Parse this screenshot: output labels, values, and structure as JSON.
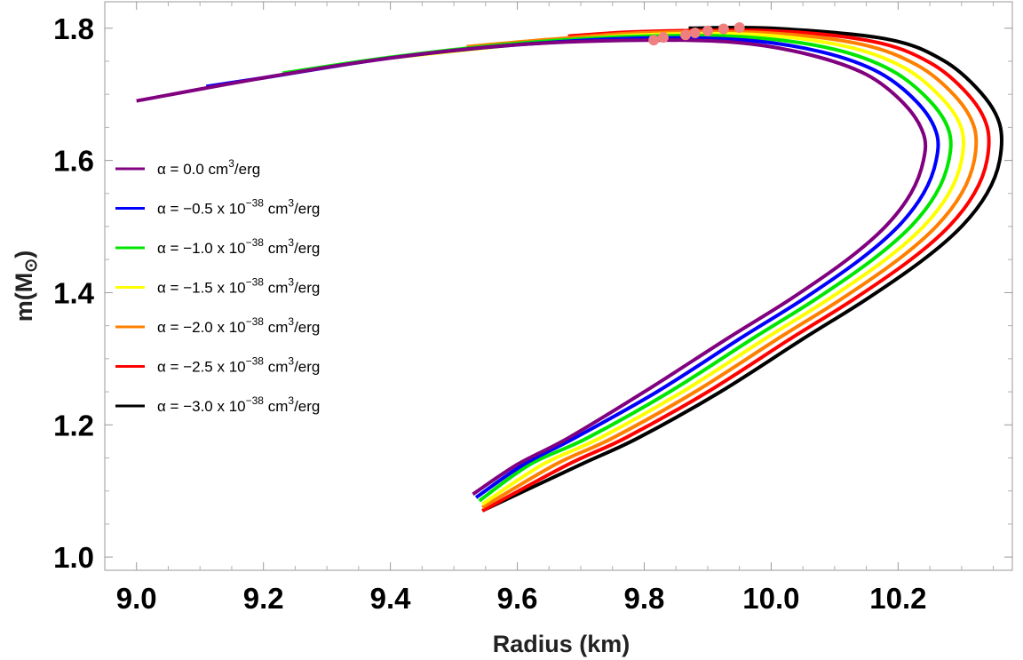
{
  "chart_data": {
    "type": "line",
    "title": "",
    "xlabel": "Radius (km)",
    "ylabel_main": "m(M",
    "ylabel_sub": "⊙",
    "ylabel_end": ")",
    "xlim": [
      8.95,
      10.38
    ],
    "ylim": [
      0.98,
      1.84
    ],
    "xticks": [
      {
        "value": 9.0,
        "label": "9.0"
      },
      {
        "value": 9.2,
        "label": "9.2"
      },
      {
        "value": 9.4,
        "label": "9.4"
      },
      {
        "value": 9.6,
        "label": "9.6"
      },
      {
        "value": 9.8,
        "label": "9.8"
      },
      {
        "value": 10.0,
        "label": "10.0"
      },
      {
        "value": 10.2,
        "label": "10.2"
      }
    ],
    "yticks": [
      {
        "value": 1.0,
        "label": "1.0"
      },
      {
        "value": 1.2,
        "label": "1.2"
      },
      {
        "value": 1.4,
        "label": "1.4"
      },
      {
        "value": 1.6,
        "label": "1.6"
      },
      {
        "value": 1.8,
        "label": "1.8"
      }
    ],
    "legend_position": "center-left",
    "series": [
      {
        "name": "α = 0.0 cm³/erg",
        "color": "#800080",
        "label_prefix": "α = 0.0 cm",
        "label_sup": "3",
        "label_suffix": "/erg",
        "has_exp": false,
        "x": [
          9.0,
          9.2,
          9.4,
          9.6,
          9.8,
          9.95,
          10.06,
          10.15,
          10.21,
          10.24,
          10.24,
          10.22,
          10.18,
          10.12,
          10.03,
          9.93,
          9.8,
          9.68,
          9.6,
          9.53
        ],
        "y": [
          1.69,
          1.725,
          1.755,
          1.775,
          1.782,
          1.778,
          1.76,
          1.73,
          1.685,
          1.64,
          1.6,
          1.55,
          1.5,
          1.45,
          1.39,
          1.33,
          1.25,
          1.18,
          1.14,
          1.095
        ],
        "max_point": {
          "x": 9.815,
          "y": 1.782
        }
      },
      {
        "name": "α = −0.5 x 10⁻³⁸ cm³/erg",
        "color": "#0000ff",
        "label_prefix": "α = −0.5 x 10",
        "label_exp": "−38",
        "label_mid": " cm",
        "label_sup": "3",
        "label_suffix": "/erg",
        "has_exp": true,
        "x": [
          9.11,
          9.2,
          9.4,
          9.6,
          9.8,
          9.96,
          10.08,
          10.17,
          10.23,
          10.26,
          10.26,
          10.24,
          10.2,
          10.14,
          10.05,
          9.95,
          9.82,
          9.69,
          9.61,
          9.535
        ],
        "y": [
          1.712,
          1.725,
          1.755,
          1.775,
          1.785,
          1.782,
          1.764,
          1.733,
          1.688,
          1.643,
          1.6,
          1.55,
          1.5,
          1.45,
          1.39,
          1.33,
          1.25,
          1.18,
          1.14,
          1.09
        ],
        "max_point": {
          "x": 9.83,
          "y": 1.786
        }
      },
      {
        "name": "α = −1.0 x 10⁻³⁸ cm³/erg",
        "color": "#00e600",
        "label_prefix": "α = −1.0 x 10",
        "label_exp": "−38",
        "label_mid": " cm",
        "label_sup": "3",
        "label_suffix": "/erg",
        "has_exp": true,
        "x": [
          9.23,
          9.4,
          9.6,
          9.8,
          9.97,
          10.1,
          10.19,
          10.25,
          10.28,
          10.28,
          10.26,
          10.22,
          10.16,
          10.07,
          9.97,
          9.84,
          9.71,
          9.62,
          9.54
        ],
        "y": [
          1.732,
          1.756,
          1.777,
          1.788,
          1.786,
          1.768,
          1.736,
          1.69,
          1.645,
          1.6,
          1.55,
          1.5,
          1.45,
          1.39,
          1.33,
          1.25,
          1.18,
          1.14,
          1.085
        ],
        "max_point": {
          "x": 9.865,
          "y": 1.79
        }
      },
      {
        "name": "α = −1.5 x 10⁻³⁸ cm³/erg",
        "color": "#ffff00",
        "label_prefix": "α = −1.5 x 10",
        "label_exp": "−38",
        "label_mid": " cm",
        "label_sup": "3",
        "label_suffix": "/erg",
        "has_exp": true,
        "x": [
          9.37,
          9.5,
          9.65,
          9.8,
          9.98,
          10.12,
          10.21,
          10.27,
          10.3,
          10.3,
          10.28,
          10.24,
          10.18,
          10.09,
          9.99,
          9.86,
          9.73,
          9.64,
          9.545
        ],
        "y": [
          1.752,
          1.765,
          1.78,
          1.79,
          1.79,
          1.772,
          1.74,
          1.693,
          1.648,
          1.6,
          1.55,
          1.5,
          1.45,
          1.39,
          1.33,
          1.25,
          1.18,
          1.14,
          1.08
        ],
        "max_point": {
          "x": 9.88,
          "y": 1.793
        }
      },
      {
        "name": "α = −2.0 x 10⁻³⁸ cm³/erg",
        "color": "#ff8000",
        "label_prefix": "α = −2.0 x 10",
        "label_exp": "−38",
        "label_mid": " cm",
        "label_sup": "3",
        "label_suffix": "/erg",
        "has_exp": true,
        "x": [
          9.52,
          9.65,
          9.8,
          9.99,
          10.14,
          10.23,
          10.29,
          10.32,
          10.32,
          10.3,
          10.26,
          10.2,
          10.11,
          10.01,
          9.88,
          9.75,
          9.66,
          9.545
        ],
        "y": [
          1.772,
          1.783,
          1.793,
          1.793,
          1.776,
          1.744,
          1.697,
          1.65,
          1.6,
          1.55,
          1.5,
          1.45,
          1.39,
          1.33,
          1.25,
          1.18,
          1.14,
          1.075
        ],
        "max_point": {
          "x": 9.9,
          "y": 1.796
        }
      },
      {
        "name": "α = −2.5 x 10⁻³⁸ cm³/erg",
        "color": "#ff0000",
        "label_prefix": "α = −2.5 x 10",
        "label_exp": "−38",
        "label_mid": " cm",
        "label_sup": "3",
        "label_suffix": "/erg",
        "has_exp": true,
        "x": [
          9.68,
          9.8,
          10.0,
          10.16,
          10.25,
          10.31,
          10.34,
          10.34,
          10.32,
          10.28,
          10.22,
          10.13,
          10.03,
          9.9,
          9.77,
          9.68,
          9.545
        ],
        "y": [
          1.788,
          1.795,
          1.796,
          1.78,
          1.748,
          1.7,
          1.652,
          1.6,
          1.55,
          1.5,
          1.45,
          1.39,
          1.33,
          1.25,
          1.18,
          1.14,
          1.07
        ],
        "max_point": {
          "x": 9.925,
          "y": 1.799
        }
      },
      {
        "name": "α = −3.0 x 10⁻³⁸ cm³/erg",
        "color": "#000000",
        "label_prefix": "α = −3.0 x 10",
        "label_exp": "−38",
        "label_mid": " cm",
        "label_sup": "3",
        "label_suffix": "/erg",
        "has_exp": true,
        "x": [
          9.87,
          10.0,
          10.18,
          10.27,
          10.33,
          10.36,
          10.36,
          10.34,
          10.3,
          10.24,
          10.15,
          10.05,
          9.92,
          9.79,
          9.7,
          9.545
        ],
        "y": [
          1.8,
          1.8,
          1.784,
          1.752,
          1.703,
          1.655,
          1.6,
          1.55,
          1.5,
          1.45,
          1.39,
          1.33,
          1.25,
          1.18,
          1.14,
          1.07
        ],
        "max_point": {
          "x": 9.95,
          "y": 1.801
        }
      }
    ],
    "max_point_color": "#f08080"
  }
}
